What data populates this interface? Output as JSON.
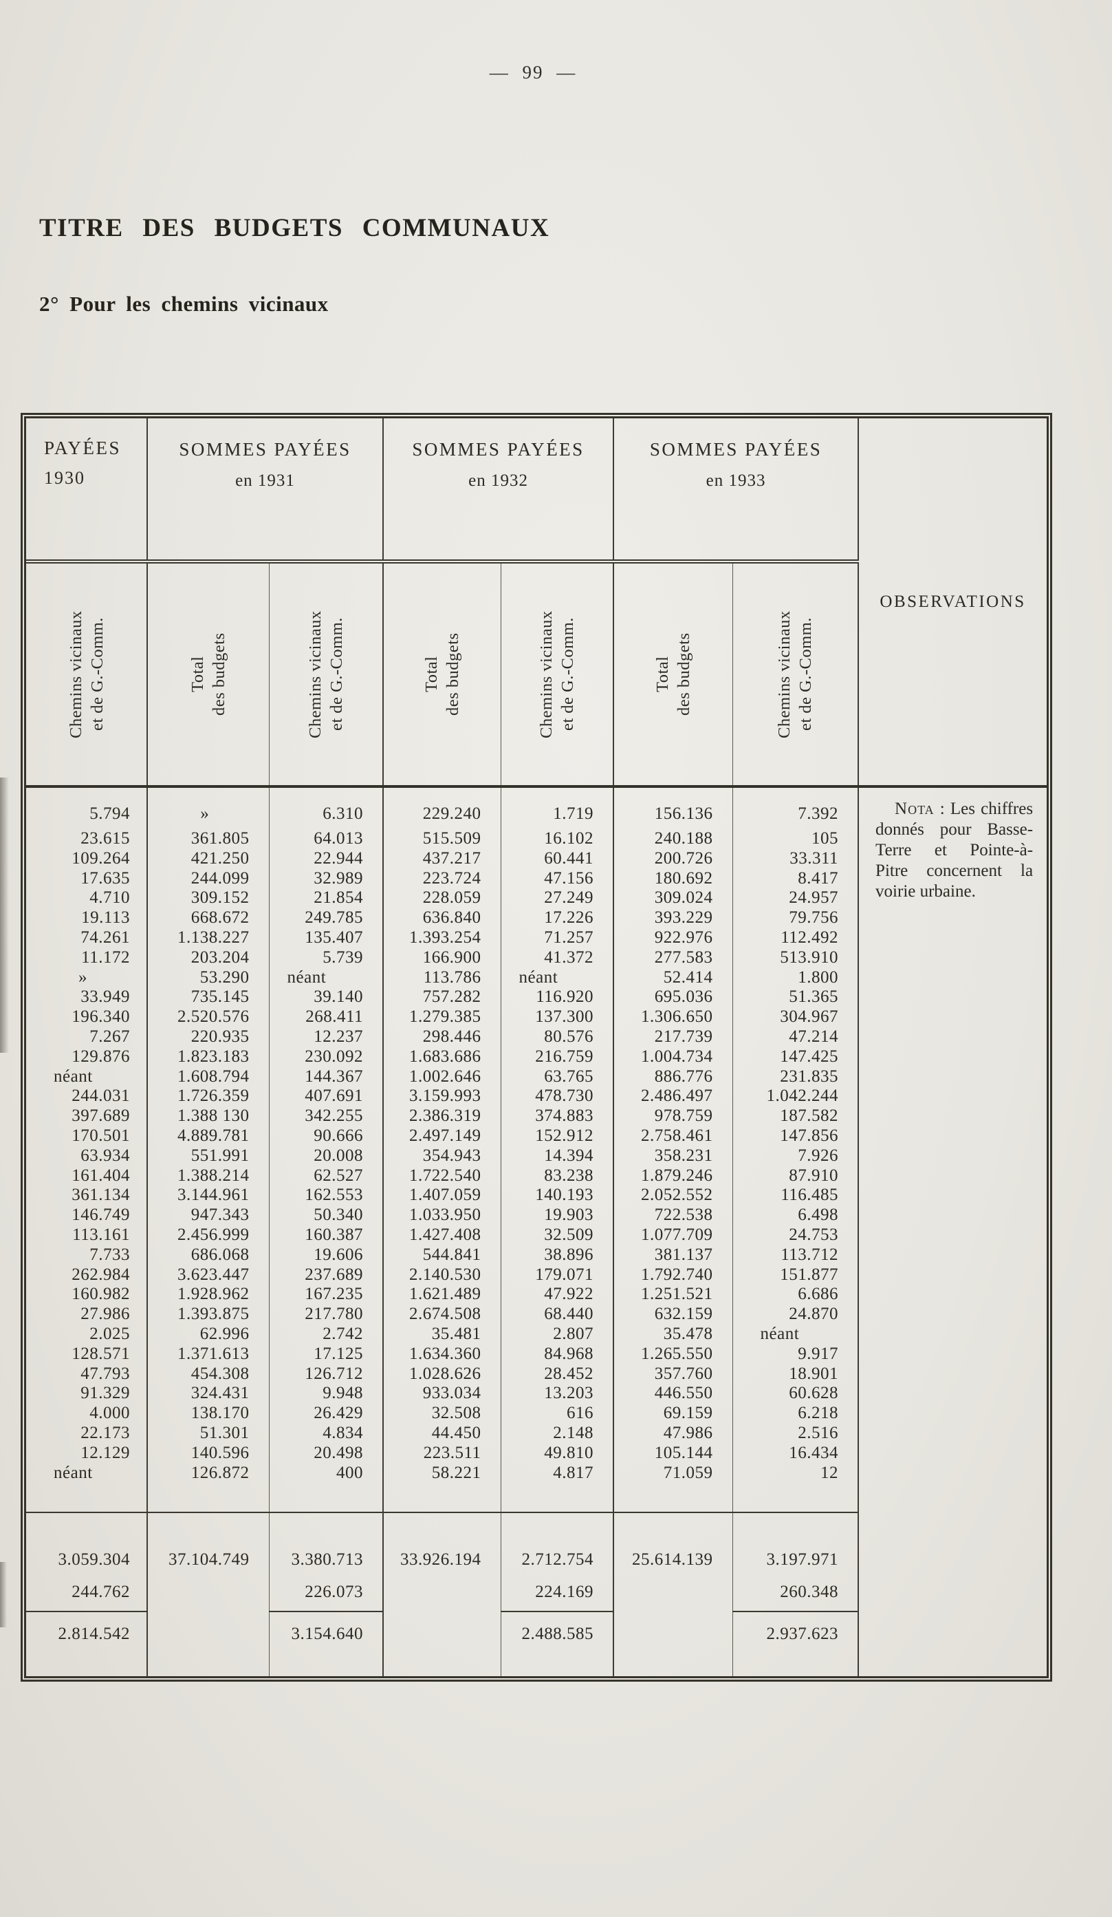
{
  "page_number": "— 99 —",
  "title": "TITRE DES BUDGETS COMMUNAUX",
  "subtitle": "2° Pour les chemins vicinaux",
  "table": {
    "groups": [
      {
        "line1": "PAYÉES",
        "line2": "1930"
      },
      {
        "line1": "SOMMES PAYÉES",
        "line2": "en 1931"
      },
      {
        "line1": "SOMMES PAYÉES",
        "line2": "en 1932"
      },
      {
        "line1": "SOMMES PAYÉES",
        "line2": "en 1933"
      }
    ],
    "observations_header": "OBSERVATIONS",
    "subheader_chemins": "Chemins vicinaux\net de G.-Comm.",
    "subheader_total": "Total\ndes budgets",
    "rows": [
      [
        "5.794",
        "»",
        "6.310",
        "229.240",
        "1.719",
        "156.136",
        "7.392"
      ],
      [
        "23.615",
        "361.805",
        "64.013",
        "515.509",
        "16.102",
        "240.188",
        "105"
      ],
      [
        "109.264",
        "421.250",
        "22.944",
        "437.217",
        "60.441",
        "200.726",
        "33.311"
      ],
      [
        "17.635",
        "244.099",
        "32.989",
        "223.724",
        "47.156",
        "180.692",
        "8.417"
      ],
      [
        "4.710",
        "309.152",
        "21.854",
        "228.059",
        "27.249",
        "309.024",
        "24.957"
      ],
      [
        "19.113",
        "668.672",
        "249.785",
        "636.840",
        "17.226",
        "393.229",
        "79.756"
      ],
      [
        "74.261",
        "1.138.227",
        "135.407",
        "1.393.254",
        "71.257",
        "922.976",
        "112.492"
      ],
      [
        "11.172",
        "203.204",
        "5.739",
        "166.900",
        "41.372",
        "277.583",
        "513.910"
      ],
      [
        "»",
        "53.290",
        "néant",
        "113.786",
        "néant",
        "52.414",
        "1.800"
      ],
      [
        "33.949",
        "735.145",
        "39.140",
        "757.282",
        "116.920",
        "695.036",
        "51.365"
      ],
      [
        "196.340",
        "2.520.576",
        "268.411",
        "1.279.385",
        "137.300",
        "1.306.650",
        "304.967"
      ],
      [
        "7.267",
        "220.935",
        "12.237",
        "298.446",
        "80.576",
        "217.739",
        "47.214"
      ],
      [
        "129.876",
        "1.823.183",
        "230.092",
        "1.683.686",
        "216.759",
        "1.004.734",
        "147.425"
      ],
      [
        "néant",
        "1.608.794",
        "144.367",
        "1.002.646",
        "63.765",
        "886.776",
        "231.835"
      ],
      [
        "244.031",
        "1.726.359",
        "407.691",
        "3.159.993",
        "478.730",
        "2.486.497",
        "1.042.244"
      ],
      [
        "397.689",
        "1.388 130",
        "342.255",
        "2.386.319",
        "374.883",
        "978.759",
        "187.582"
      ],
      [
        "170.501",
        "4.889.781",
        "90.666",
        "2.497.149",
        "152.912",
        "2.758.461",
        "147.856"
      ],
      [
        "63.934",
        "551.991",
        "20.008",
        "354.943",
        "14.394",
        "358.231",
        "7.926"
      ],
      [
        "161.404",
        "1.388.214",
        "62.527",
        "1.722.540",
        "83.238",
        "1.879.246",
        "87.910"
      ],
      [
        "361.134",
        "3.144.961",
        "162.553",
        "1.407.059",
        "140.193",
        "2.052.552",
        "116.485"
      ],
      [
        "146.749",
        "947.343",
        "50.340",
        "1.033.950",
        "19.903",
        "722.538",
        "6.498"
      ],
      [
        "113.161",
        "2.456.999",
        "160.387",
        "1.427.408",
        "32.509",
        "1.077.709",
        "24.753"
      ],
      [
        "7.733",
        "686.068",
        "19.606",
        "544.841",
        "38.896",
        "381.137",
        "113.712"
      ],
      [
        "262.984",
        "3.623.447",
        "237.689",
        "2.140.530",
        "179.071",
        "1.792.740",
        "151.877"
      ],
      [
        "160.982",
        "1.928.962",
        "167.235",
        "1.621.489",
        "47.922",
        "1.251.521",
        "6.686"
      ],
      [
        "27.986",
        "1.393.875",
        "217.780",
        "2.674.508",
        "68.440",
        "632.159",
        "24.870"
      ],
      [
        "2.025",
        "62.996",
        "2.742",
        "35.481",
        "2.807",
        "35.478",
        "néant"
      ],
      [
        "128.571",
        "1.371.613",
        "17.125",
        "1.634.360",
        "84.968",
        "1.265.550",
        "9.917"
      ],
      [
        "47.793",
        "454.308",
        "126.712",
        "1.028.626",
        "28.452",
        "357.760",
        "18.901"
      ],
      [
        "91.329",
        "324.431",
        "9.948",
        "933.034",
        "13.203",
        "446.550",
        "60.628"
      ],
      [
        "4.000",
        "138.170",
        "26.429",
        "32.508",
        "616",
        "69.159",
        "6.218"
      ],
      [
        "22.173",
        "51.301",
        "4.834",
        "44.450",
        "2.148",
        "47.986",
        "2.516"
      ],
      [
        "12.129",
        "140.596",
        "20.498",
        "223.511",
        "49.810",
        "105.144",
        "16.434"
      ],
      [
        "néant",
        "126.872",
        "400",
        "58.221",
        "4.817",
        "71.059",
        "12"
      ]
    ],
    "totals": {
      "sums": [
        "3.059.304",
        "37.104.749",
        "3.380.713",
        "33.926.194",
        "2.712.754",
        "25.614.139",
        "3.197.971"
      ],
      "deductions": [
        "244.762",
        "",
        "226.073",
        "",
        "224.169",
        "",
        "260.348"
      ],
      "results": [
        "2.814.542",
        "",
        "3.154.640",
        "",
        "2.488.585",
        "",
        "2.937.623"
      ]
    },
    "note": {
      "first_word": "Nota",
      "lines": [
        " : Les chiffres",
        "donnés pour Basse-",
        "Terre et Pointe-à-",
        "Pitre concernent la",
        "voirie urbaine."
      ]
    }
  }
}
